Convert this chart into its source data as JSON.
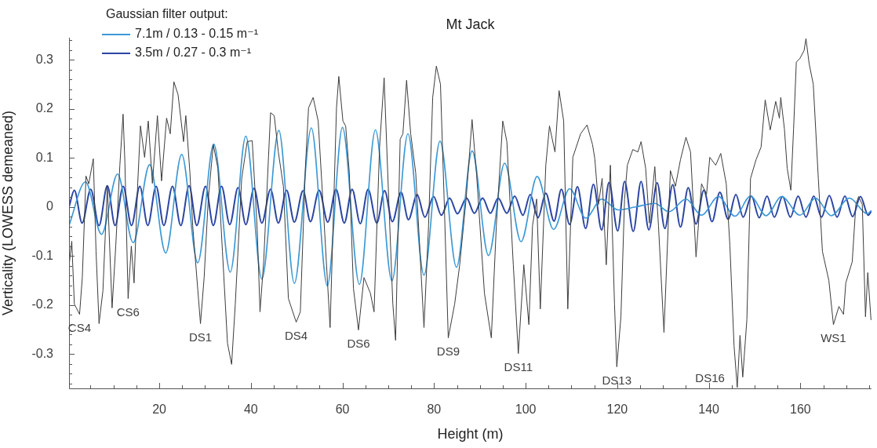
{
  "chart_data": {
    "type": "line",
    "title": "Mt Jack",
    "xlabel": "Height (m)",
    "ylabel": "Verticality (LOWESS demeaned)",
    "legend_title": "Gaussian filter output:",
    "legend": "top left",
    "xlim": [
      0.3,
      175.5
    ],
    "ylim": [
      -0.37,
      0.345
    ],
    "xticks": [
      {
        "value": 5,
        "label": null
      },
      {
        "value": 10,
        "label": null
      },
      {
        "value": 15,
        "label": null
      },
      20,
      {
        "value": 25,
        "label": null
      },
      {
        "value": 30,
        "label": null
      },
      {
        "value": 35,
        "label": null
      },
      40,
      {
        "value": 45,
        "label": null
      },
      {
        "value": 50,
        "label": null
      },
      {
        "value": 55,
        "label": null
      },
      60,
      {
        "value": 65,
        "label": null
      },
      {
        "value": 70,
        "label": null
      },
      {
        "value": 75,
        "label": null
      },
      80,
      {
        "value": 85,
        "label": null
      },
      {
        "value": 90,
        "label": null
      },
      {
        "value": 95,
        "label": null
      },
      100,
      {
        "value": 105,
        "label": null
      },
      {
        "value": 110,
        "label": null
      },
      {
        "value": 115,
        "label": null
      },
      120,
      {
        "value": 125,
        "label": null
      },
      {
        "value": 130,
        "label": null
      },
      {
        "value": 135,
        "label": null
      },
      140,
      {
        "value": 145,
        "label": null
      },
      {
        "value": 150,
        "label": null
      },
      {
        "value": 155,
        "label": null
      },
      160,
      {
        "value": 165,
        "label": null
      },
      {
        "value": 170,
        "label": null
      },
      {
        "value": 175,
        "label": null
      }
    ],
    "yticks": [
      {
        "value": -0.36,
        "label": null
      },
      {
        "value": -0.34,
        "label": null
      },
      {
        "value": -0.32,
        "label": null
      },
      -0.3,
      {
        "value": -0.28,
        "label": null
      },
      {
        "value": -0.26,
        "label": null
      },
      {
        "value": -0.24,
        "label": null
      },
      {
        "value": -0.22,
        "label": null
      },
      -0.2,
      {
        "value": -0.18,
        "label": null
      },
      {
        "value": -0.16,
        "label": null
      },
      {
        "value": -0.14,
        "label": null
      },
      {
        "value": -0.12,
        "label": null
      },
      -0.1,
      {
        "value": -0.08,
        "label": null
      },
      {
        "value": -0.06,
        "label": null
      },
      {
        "value": -0.04,
        "label": null
      },
      {
        "value": -0.02,
        "label": null
      },
      0,
      {
        "value": 0.02,
        "label": null
      },
      {
        "value": 0.04,
        "label": null
      },
      {
        "value": 0.06,
        "label": null
      },
      {
        "value": 0.08,
        "label": null
      },
      0.1,
      {
        "value": 0.12,
        "label": null
      },
      {
        "value": 0.14,
        "label": null
      },
      {
        "value": 0.16,
        "label": null
      },
      {
        "value": 0.18,
        "label": null
      },
      0.2,
      {
        "value": 0.22,
        "label": null
      },
      {
        "value": 0.24,
        "label": null
      },
      {
        "value": 0.26,
        "label": null
      },
      {
        "value": 0.28,
        "label": null
      },
      0.3,
      {
        "value": 0.32,
        "label": null
      },
      {
        "value": 0.34,
        "label": null
      }
    ],
    "annotations": [
      {
        "text": "CS4",
        "x": 2.6,
        "y": -0.219
      },
      {
        "text": "CS6",
        "x": 13.2,
        "y": -0.187
      },
      {
        "text": "DS1",
        "x": 29.0,
        "y": -0.238
      },
      {
        "text": "DS4",
        "x": 49.9,
        "y": -0.235
      },
      {
        "text": "DS6",
        "x": 63.5,
        "y": -0.251
      },
      {
        "text": "DS9",
        "x": 83.1,
        "y": -0.267
      },
      {
        "text": "DS11",
        "x": 98.4,
        "y": -0.299
      },
      {
        "text": "DS13",
        "x": 119.9,
        "y": -0.326
      },
      {
        "text": "DS16",
        "x": 146.2,
        "y": -0.368
      },
      {
        "text": "WS1",
        "x": 167.2,
        "y": -0.24
      }
    ],
    "series": [
      {
        "color": "#3c3c3c",
        "x": [
          0.33,
          0.9,
          1.46,
          2.6,
          3.2,
          4.0,
          4.6,
          5.6,
          6.2,
          6.85,
          7.7,
          8.66,
          9.7,
          10.5,
          11.4,
          12.1,
          12.5,
          13.2,
          13.9,
          14.5,
          15.3,
          15.9,
          16.8,
          17.6,
          18.5,
          19.6,
          20.5,
          21.6,
          22.4,
          23.2,
          24.1,
          25.3,
          25.8,
          26.7,
          27.3,
          29.0,
          29.8,
          30.7,
          31.8,
          32.8,
          33.8,
          34.9,
          35.8,
          36.6,
          38.0,
          39.2,
          40.3,
          41.4,
          42.0,
          42.8,
          44.3,
          45.1,
          46.0,
          47.1,
          48.2,
          49.9,
          50.8,
          51.9,
          52.6,
          53.6,
          54.7,
          55.9,
          57.3,
          58.7,
          59.2,
          60.1,
          60.7,
          61.5,
          62.4,
          63.5,
          64.7,
          66.1,
          66.9,
          68.1,
          69.1,
          70.1,
          71.0,
          71.6,
          72.6,
          73.2,
          74.0,
          74.9,
          76.0,
          77.8,
          78.8,
          79.7,
          80.5,
          81.4,
          82.2,
          83.1,
          84.5,
          85.6,
          87.0,
          88.3,
          89.3,
          91.0,
          92.5,
          93.6,
          95.0,
          95.9,
          97.3,
          98.4,
          99.6,
          100.7,
          101.5,
          102.4,
          103.2,
          104.4,
          105.2,
          106.4,
          107.3,
          108.3,
          109.2,
          110.3,
          112.0,
          113.4,
          114.6,
          115.1,
          115.9,
          116.7,
          117.6,
          118.5,
          119.4,
          119.9,
          120.8,
          121.6,
          122.2,
          123.4,
          124.5,
          125.2,
          126.2,
          127.0,
          128.2,
          129.0,
          130.2,
          131.6,
          132.7,
          133.8,
          135.0,
          136.0,
          137.2,
          138.4,
          139.5,
          140.2,
          141.5,
          142.6,
          143.8,
          144.6,
          145.5,
          146.2,
          146.8,
          147.4,
          148.3,
          149.1,
          150.3,
          151.4,
          152.3,
          153.4,
          154.6,
          155.4,
          155.7,
          156.5,
          157.1,
          157.9,
          158.5,
          159.1,
          159.9,
          160.8,
          161.2,
          161.9,
          162.8,
          163.9,
          164.8,
          166.2,
          167.2,
          168.4,
          169.4,
          169.9,
          171.3,
          172.1,
          172.7,
          173.5,
          174.2,
          174.7,
          175.4
        ],
        "values": [
          -0.118,
          -0.07,
          -0.198,
          -0.219,
          -0.144,
          0.063,
          0.047,
          0.098,
          -0.091,
          -0.238,
          -0.171,
          0.042,
          -0.206,
          -0.08,
          0.085,
          0.189,
          0.09,
          -0.187,
          -0.08,
          -0.155,
          0.048,
          0.165,
          0.101,
          0.175,
          0.048,
          0.186,
          0.053,
          0.181,
          0.149,
          0.255,
          0.229,
          0.133,
          0.186,
          0.069,
          -0.038,
          -0.238,
          -0.144,
          0.016,
          0.127,
          0.079,
          -0.091,
          -0.278,
          -0.321,
          -0.198,
          0.058,
          0.133,
          0.135,
          -0.048,
          -0.214,
          -0.112,
          0.192,
          0.186,
          0.112,
          0.042,
          -0.187,
          -0.235,
          -0.214,
          0.079,
          0.202,
          0.223,
          0.175,
          -0.016,
          -0.246,
          0.202,
          0.266,
          0.175,
          0.165,
          0.069,
          -0.166,
          -0.251,
          -0.144,
          -0.176,
          -0.214,
          0.122,
          0.263,
          0.016,
          -0.198,
          -0.272,
          0.138,
          0.149,
          0.258,
          0.149,
          0.069,
          -0.246,
          -0.038,
          0.223,
          0.287,
          0.25,
          0.016,
          -0.267,
          -0.198,
          -0.118,
          0.016,
          0.178,
          0.064,
          -0.176,
          -0.267,
          -0.038,
          0.175,
          0.133,
          -0.118,
          -0.299,
          -0.118,
          -0.24,
          -0.038,
          0.016,
          -0.208,
          0.085,
          0.165,
          0.112,
          0.237,
          0.175,
          -0.208,
          0.101,
          0.149,
          0.167,
          0.127,
          0.098,
          0.005,
          0.058,
          -0.118,
          0.085,
          -0.198,
          -0.326,
          -0.224,
          0.016,
          0.085,
          0.117,
          0.112,
          0.133,
          0.079,
          -0.033,
          0.082,
          -0.038,
          -0.256,
          0.074,
          0.042,
          0.096,
          0.142,
          0.112,
          -0.102,
          0.047,
          0.026,
          0.101,
          0.085,
          0.109,
          0.047,
          -0.08,
          -0.283,
          -0.368,
          -0.262,
          -0.347,
          -0.23,
          0.058,
          0.096,
          0.122,
          0.218,
          0.157,
          0.215,
          0.181,
          0.223,
          0.159,
          0.079,
          0.034,
          0.159,
          0.295,
          0.303,
          0.319,
          0.343,
          0.292,
          0.25,
          0.058,
          -0.091,
          -0.15,
          -0.24,
          -0.203,
          -0.219,
          -0.155,
          -0.112,
          0.005,
          0.021,
          0.005,
          -0.224,
          -0.134,
          -0.23
        ]
      },
      {
        "name": "7.1m / 0.13 - 0.15 m⁻¹",
        "color": "#3b98d6",
        "x": [
          0.3,
          3.9,
          7.4,
          10.9,
          14.3,
          17.9,
          21.4,
          24.9,
          28.4,
          31.9,
          35.5,
          38.9,
          42.4,
          46.1,
          49.5,
          53.2,
          56.7,
          60.0,
          63.7,
          67.2,
          70.8,
          74.3,
          77.8,
          81.3,
          84.9,
          88.3,
          91.9,
          95.4,
          99.0,
          102.5,
          106.1,
          109.6,
          113.1,
          116.6,
          120.2,
          124.0,
          128.2,
          131.3,
          135.0,
          138.4,
          142.1,
          145.7,
          149.1,
          152.5,
          155.9,
          159.9,
          163.3,
          166.7,
          170.7,
          174.6,
          175.4
        ],
        "values": [
          -0.038,
          0.051,
          -0.056,
          0.067,
          -0.073,
          0.086,
          -0.094,
          0.107,
          -0.114,
          0.128,
          -0.133,
          0.144,
          -0.147,
          0.156,
          -0.156,
          0.161,
          -0.161,
          0.162,
          -0.158,
          0.157,
          -0.151,
          0.149,
          -0.139,
          0.134,
          -0.123,
          0.114,
          -0.099,
          0.089,
          -0.071,
          0.062,
          -0.046,
          0.037,
          -0.023,
          0.016,
          -0.006,
          0.0,
          0.007,
          -0.01,
          0.016,
          -0.017,
          0.021,
          -0.019,
          0.022,
          -0.018,
          0.021,
          -0.017,
          0.018,
          -0.018,
          0.018,
          -0.014,
          -0.008
        ]
      },
      {
        "name": "3.5m / 0.27 - 0.3 m⁻¹",
        "color": "#2b45a3",
        "x": [
          0.3,
          1.46,
          3.16,
          5.03,
          6.85,
          8.66,
          10.36,
          12.12,
          13.94,
          15.75,
          17.5,
          19.32,
          21.0,
          22.89,
          24.7,
          26.52,
          28.2,
          30.1,
          31.8,
          33.6,
          35.4,
          37.2,
          38.9,
          40.7,
          42.4,
          44.3,
          46.0,
          47.8,
          49.5,
          51.4,
          53.0,
          54.9,
          56.8,
          58.6,
          60.4,
          62.1,
          63.9,
          65.6,
          67.5,
          69.2,
          70.9,
          72.8,
          74.4,
          76.3,
          78.0,
          79.9,
          81.6,
          83.4,
          85.1,
          87.1,
          88.8,
          90.6,
          92.3,
          94.0,
          95.9,
          97.6,
          99.4,
          101.0,
          102.7,
          104.4,
          106.2,
          107.8,
          109.6,
          111.3,
          113.1,
          114.8,
          116.6,
          118.2,
          120.1,
          121.6,
          123.5,
          125.2,
          126.9,
          128.7,
          130.4,
          132.1,
          133.8,
          135.5,
          137.2,
          138.9,
          140.7,
          142.4,
          144.2,
          145.9,
          147.5,
          149.3,
          151.0,
          152.7,
          154.3,
          156.1,
          157.8,
          159.5,
          161.2,
          162.9,
          164.6,
          166.3,
          168.0,
          169.7,
          171.4,
          173.1,
          174.8,
          175.4
        ],
        "values": [
          0.0,
          0.034,
          -0.033,
          0.036,
          -0.038,
          0.043,
          -0.038,
          0.042,
          -0.038,
          0.042,
          -0.038,
          0.042,
          -0.038,
          0.042,
          -0.038,
          0.043,
          -0.038,
          0.042,
          -0.038,
          0.042,
          -0.036,
          0.039,
          -0.036,
          0.038,
          -0.033,
          0.036,
          -0.033,
          0.034,
          -0.031,
          0.033,
          -0.03,
          0.034,
          -0.031,
          0.036,
          -0.033,
          0.036,
          -0.034,
          0.036,
          -0.033,
          0.033,
          -0.03,
          0.03,
          -0.026,
          0.025,
          -0.021,
          0.021,
          -0.017,
          0.018,
          -0.014,
          0.018,
          -0.013,
          0.018,
          -0.013,
          0.018,
          -0.013,
          0.022,
          -0.017,
          0.025,
          -0.022,
          0.028,
          -0.029,
          0.036,
          -0.036,
          0.041,
          -0.044,
          0.046,
          -0.047,
          0.05,
          -0.049,
          0.052,
          -0.05,
          0.052,
          -0.047,
          0.049,
          -0.044,
          0.045,
          -0.041,
          0.039,
          -0.035,
          0.034,
          -0.03,
          0.03,
          -0.025,
          0.025,
          -0.021,
          0.022,
          -0.022,
          0.022,
          -0.021,
          0.021,
          -0.021,
          0.022,
          -0.021,
          0.022,
          -0.021,
          0.023,
          -0.021,
          0.022,
          -0.02,
          0.021,
          -0.017,
          -0.01
        ]
      }
    ]
  }
}
